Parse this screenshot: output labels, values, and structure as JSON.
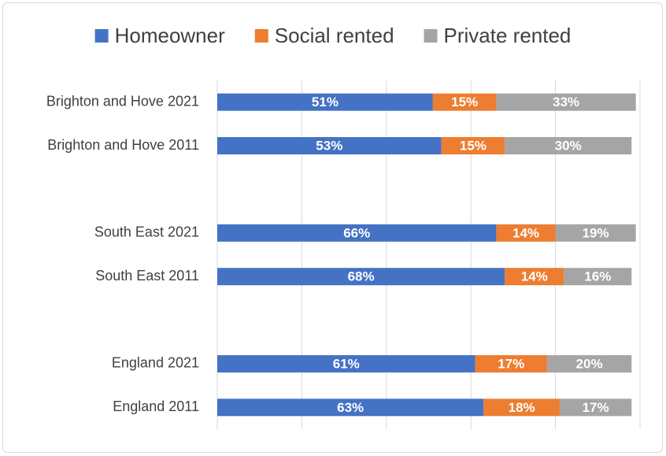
{
  "chart_data": {
    "type": "stacked-bar-horizontal",
    "categories": [
      "Brighton and Hove 2021",
      "Brighton and Hove 2011",
      null,
      "South East 2021",
      "South East 2011",
      null,
      "England 2021",
      "England 2011"
    ],
    "series": [
      {
        "name": "Homeowner",
        "color": "#4472c4",
        "values": [
          51,
          53,
          null,
          66,
          68,
          null,
          61,
          63
        ],
        "value_labels": [
          "51%",
          "53%",
          null,
          "66%",
          "68%",
          null,
          "61%",
          "63%"
        ]
      },
      {
        "name": "Social rented",
        "color": "#ed7d31",
        "values": [
          15,
          15,
          null,
          14,
          14,
          null,
          17,
          18
        ],
        "value_labels": [
          "15%",
          "15%",
          null,
          "14%",
          "14%",
          null,
          "17%",
          "18%"
        ]
      },
      {
        "name": "Private rented",
        "color": "#a5a5a5",
        "values": [
          33,
          30,
          null,
          19,
          16,
          null,
          20,
          17
        ],
        "value_labels": [
          "33%",
          "30%",
          null,
          "19%",
          "16%",
          null,
          "20%",
          "17%"
        ]
      }
    ],
    "xlim": [
      0,
      100
    ],
    "xticks": [
      0,
      20,
      40,
      60,
      80,
      100
    ],
    "grid": true,
    "legend": "top"
  }
}
